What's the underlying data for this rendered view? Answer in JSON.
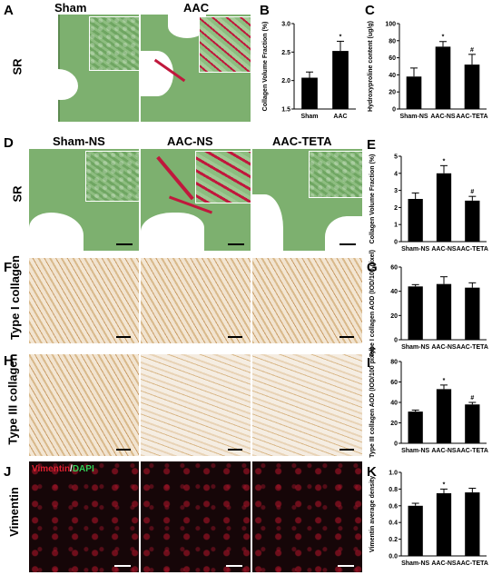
{
  "panels": {
    "A": {
      "letter": "A",
      "row_label": "SR",
      "col1": "Sham",
      "col2": "AAC"
    },
    "D": {
      "letter": "D",
      "row_label": "SR",
      "col1": "Sham-NS",
      "col2": "AAC-NS",
      "col3": "AAC-TETA"
    },
    "F": {
      "letter": "F",
      "row_label": "Type I collagen"
    },
    "H": {
      "letter": "H",
      "row_label": "Type III collagen"
    },
    "J": {
      "letter": "J",
      "row_label": "Vimentin",
      "stain_red": "Vimentin",
      "stain_sep": "/",
      "stain_green": "DAPI"
    }
  },
  "colors": {
    "sr_green": "#7db06f",
    "collagen_red": "#c0183c",
    "dapi_green": "#33cc55",
    "bar_black": "#000000"
  },
  "chart_data": [
    {
      "id": "B",
      "letter": "B",
      "type": "bar",
      "categories": [
        "Sham",
        "AAC"
      ],
      "values": [
        2.05,
        2.52
      ],
      "errors": [
        0.1,
        0.17
      ],
      "ylabel": "Collagen Volume Fraction (%)",
      "ylim": [
        1.5,
        3.0
      ],
      "yticks": [
        "1.5",
        "2.0",
        "2.5",
        "3.0"
      ],
      "annotations": [
        "",
        "*"
      ]
    },
    {
      "id": "C",
      "letter": "C",
      "type": "bar",
      "categories": [
        "Sham-NS",
        "AAC-NS",
        "AAC-TETA"
      ],
      "values": [
        38,
        73,
        52
      ],
      "errors": [
        10,
        6,
        12
      ],
      "ylabel": "Hydroxyproline content (ug/g)",
      "ylim": [
        0,
        100
      ],
      "yticks": [
        "0",
        "20",
        "40",
        "60",
        "80",
        "100"
      ],
      "annotations": [
        "",
        "*",
        "#"
      ]
    },
    {
      "id": "E",
      "letter": "E",
      "type": "bar",
      "categories": [
        "Sham-NS",
        "AAC-NS",
        "AAC-TETA"
      ],
      "values": [
        2.5,
        4.0,
        2.4
      ],
      "errors": [
        0.35,
        0.45,
        0.25
      ],
      "ylabel": "Collagen Volume Fraction (%)",
      "ylim": [
        0,
        5
      ],
      "yticks": [
        "0",
        "1",
        "2",
        "3",
        "4",
        "5"
      ],
      "annotations": [
        "",
        "*",
        "#"
      ]
    },
    {
      "id": "G",
      "letter": "G",
      "type": "bar",
      "categories": [
        "Sham-NS",
        "AAC-NS",
        "AAC-TETA"
      ],
      "values": [
        44,
        46,
        43
      ],
      "errors": [
        1.5,
        6,
        4
      ],
      "ylabel": "Type I collagen AOD (IOD/100 pixel)",
      "ylim": [
        0,
        60
      ],
      "yticks": [
        "0",
        "20",
        "40",
        "60"
      ],
      "annotations": [
        "",
        "",
        ""
      ]
    },
    {
      "id": "I",
      "letter": "I",
      "type": "bar",
      "categories": [
        "Sham-NS",
        "AAC-NS",
        "AAC-TETA"
      ],
      "values": [
        31,
        53,
        38
      ],
      "errors": [
        1.5,
        4,
        2
      ],
      "ylabel": "Type III collagen AOD (IOD/100 pixel)",
      "ylim": [
        0,
        80
      ],
      "yticks": [
        "0",
        "20",
        "40",
        "60",
        "80"
      ],
      "annotations": [
        "",
        "*",
        "#"
      ]
    },
    {
      "id": "K",
      "letter": "K",
      "type": "bar",
      "categories": [
        "Sham-NS",
        "AAC-NS",
        "AAC-TETA"
      ],
      "values": [
        0.6,
        0.75,
        0.76
      ],
      "errors": [
        0.03,
        0.05,
        0.05
      ],
      "ylabel": "Vimentin average density",
      "ylim": [
        0,
        1.0
      ],
      "yticks": [
        "0.0",
        "0.2",
        "0.4",
        "0.6",
        "0.8",
        "1.0"
      ],
      "annotations": [
        "",
        "*",
        ""
      ]
    }
  ]
}
